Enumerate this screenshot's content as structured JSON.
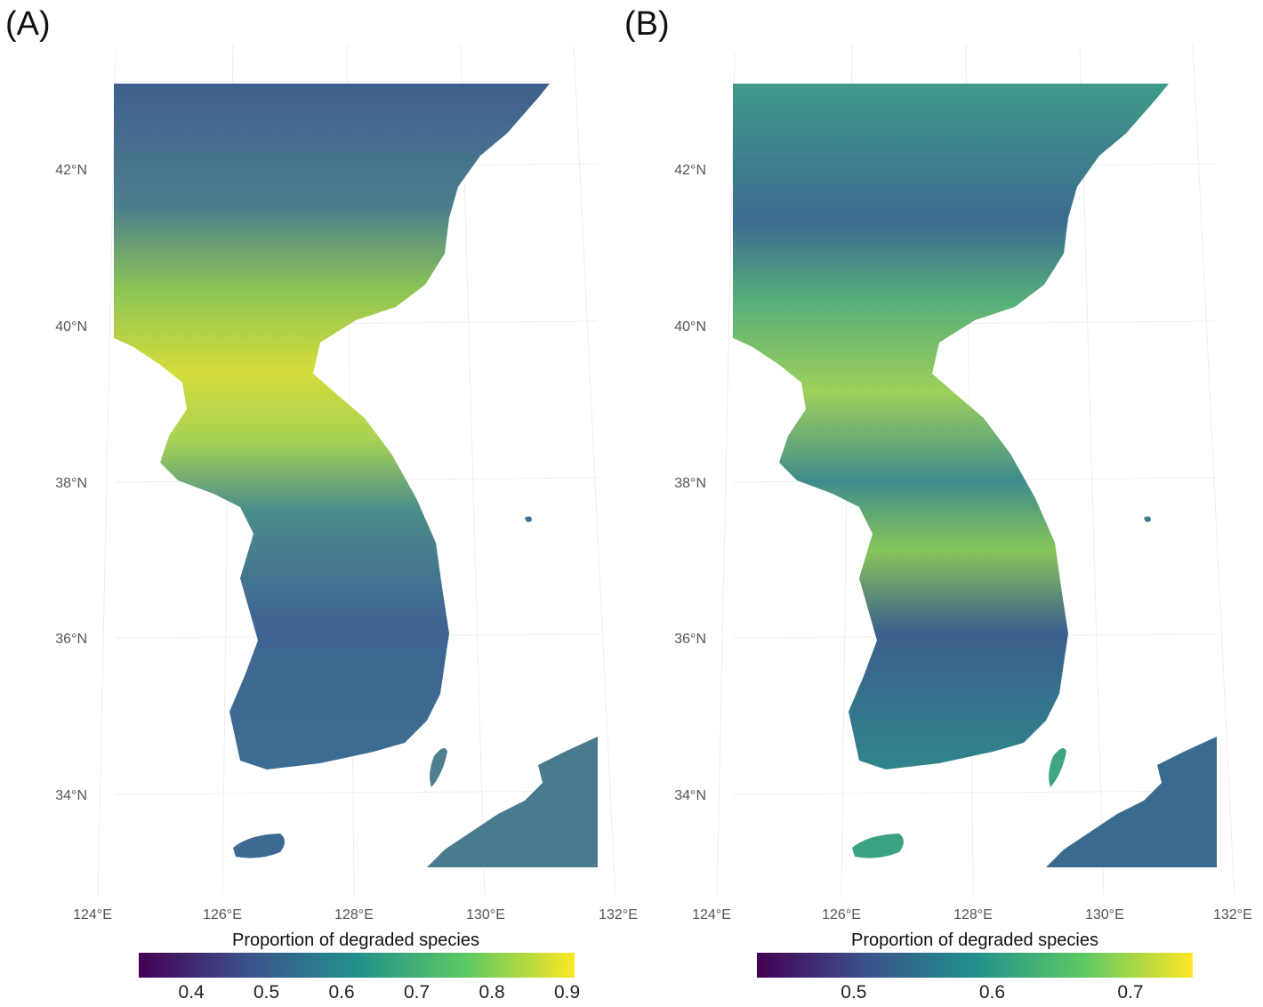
{
  "panels": [
    {
      "id": "a",
      "label": "(A)",
      "lat_ticks": [
        "42°N",
        "40°N",
        "38°N",
        "36°N",
        "34°N"
      ],
      "lon_ticks": [
        "124°E",
        "126°E",
        "128°E",
        "130°E",
        "132°E"
      ],
      "legend_title": "Proportion of degraded species",
      "legend_ticks": [
        "0.4",
        "0.5",
        "0.6",
        "0.7",
        "0.8",
        "0.9"
      ],
      "legend_range": [
        0.33,
        0.91
      ],
      "legend_tick_values": [
        0.4,
        0.5,
        0.6,
        0.7,
        0.8,
        0.9
      ]
    },
    {
      "id": "b",
      "label": "(B)",
      "lat_ticks": [
        "42°N",
        "40°N",
        "38°N",
        "36°N",
        "34°N"
      ],
      "lon_ticks": [
        "124°E",
        "126°E",
        "128°E",
        "130°E",
        "132°E"
      ],
      "legend_title": "Proportion of degraded species",
      "legend_ticks": [
        "0.5",
        "0.6",
        "0.7"
      ],
      "legend_range": [
        0.43,
        0.745
      ],
      "legend_tick_values": [
        0.5,
        0.6,
        0.7
      ]
    }
  ],
  "colors": {
    "palette": "viridis",
    "stops": [
      "#440154",
      "#3b528b",
      "#21908c",
      "#5dc963",
      "#fde725"
    ],
    "panel_a_north": "#4a6e8f",
    "panel_a_central": "#b8d84a",
    "panel_a_south": "#3f6690",
    "panel_b_north": "#3f8c8a",
    "panel_b_central": "#7ec85a",
    "panel_b_south": "#2e7f8c"
  }
}
